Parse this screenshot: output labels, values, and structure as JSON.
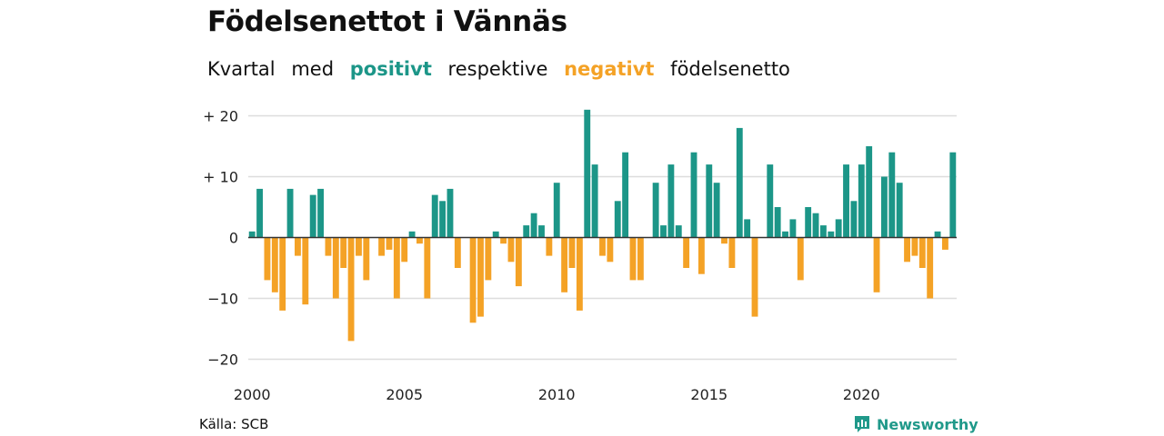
{
  "title": "Födelsenettot i Vännäs",
  "subtitle": {
    "part1": "Kvartal",
    "part2": "med",
    "positive_word": "positivt",
    "part3": "respektive",
    "negative_word": "negativt",
    "part4": "födelsenetto"
  },
  "colors": {
    "positive": "#1c9688",
    "negative": "#f4a226",
    "grid": "#dddddd",
    "zero": "#333333"
  },
  "source": "Källa: SCB",
  "brand": {
    "name": "Newsworthy",
    "icon": "newsworthy-logo-icon"
  },
  "chart_data": {
    "type": "bar",
    "x_start": "2000 Q1",
    "ylim": [
      -22,
      22
    ],
    "y_ticks": [
      20,
      10,
      0,
      -10,
      -20
    ],
    "y_tick_labels": [
      "+ 20",
      "+ 10",
      "0",
      "−10",
      "−20"
    ],
    "x_ticks": [
      2000,
      2005,
      2010,
      2015,
      2020
    ],
    "x_tick_labels": [
      "2000",
      "2005",
      "2010",
      "2015",
      "2020"
    ],
    "grid": true,
    "values": [
      1,
      8,
      -7,
      -9,
      -12,
      8,
      -3,
      -11,
      7,
      8,
      -3,
      -10,
      -5,
      -17,
      -3,
      -7,
      0,
      -3,
      -2,
      -10,
      -4,
      1,
      -1,
      -10,
      7,
      6,
      8,
      -5,
      0,
      -14,
      -13,
      -7,
      1,
      -1,
      -4,
      -8,
      2,
      4,
      2,
      -3,
      9,
      -9,
      -5,
      -12,
      21,
      12,
      -3,
      -4,
      6,
      14,
      -7,
      -7,
      0,
      9,
      2,
      12,
      2,
      -5,
      14,
      -6,
      12,
      9,
      -1,
      -5,
      18,
      3,
      -13,
      0,
      12,
      5,
      1,
      3,
      -7,
      5,
      4,
      2,
      1,
      3,
      12,
      6,
      12,
      15,
      -9,
      10,
      14,
      9,
      -4,
      -3,
      -5,
      -10,
      1,
      -2,
      14
    ]
  }
}
